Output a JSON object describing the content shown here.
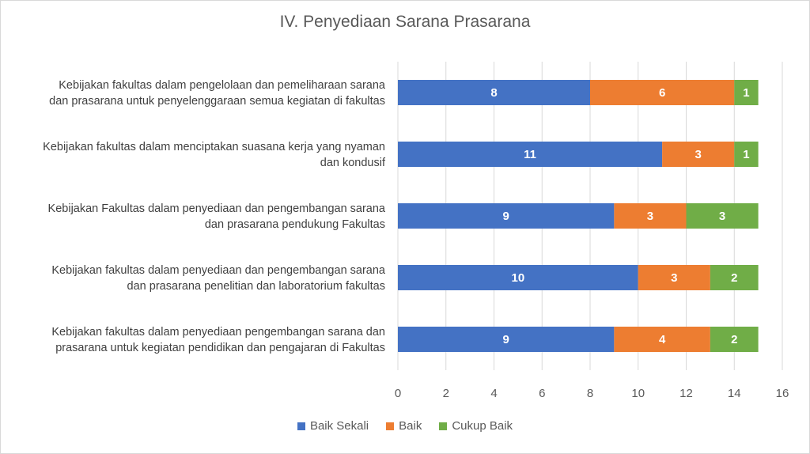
{
  "chart_data": {
    "type": "bar",
    "orientation": "horizontal",
    "stacked": true,
    "title": "IV. Penyediaan Sarana Prasarana",
    "categories": [
      [
        "Kebijakan fakultas dalam pengelolaan dan pemeliharaan sarana",
        "dan prasarana untuk penyelenggaraan semua kegiatan di fakultas"
      ],
      [
        "Kebijakan fakultas dalam menciptakan suasana kerja yang nyaman",
        "dan kondusif"
      ],
      [
        "Kebijakan Fakultas dalam penyediaan dan pengembangan sarana",
        "dan prasarana pendukung Fakultas"
      ],
      [
        "Kebijakan fakultas dalam penyediaan dan pengembangan sarana",
        "dan prasarana penelitian dan laboratorium fakultas"
      ],
      [
        "Kebijakan fakultas dalam penyediaan pengembangan sarana dan",
        "prasarana untuk kegiatan pendidikan dan pengajaran di Fakultas"
      ]
    ],
    "series": [
      {
        "name": "Baik Sekali",
        "color": "#4472C4",
        "values": [
          8,
          11,
          9,
          10,
          9
        ]
      },
      {
        "name": "Baik",
        "color": "#ED7D31",
        "values": [
          6,
          3,
          3,
          3,
          4
        ]
      },
      {
        "name": "Cukup Baik",
        "color": "#70AD47",
        "values": [
          1,
          1,
          3,
          2,
          2
        ]
      }
    ],
    "xlim": [
      0,
      16
    ],
    "xticks": [
      0,
      2,
      4,
      6,
      8,
      10,
      12,
      14,
      16
    ],
    "grid": true,
    "legend_position": "bottom"
  }
}
